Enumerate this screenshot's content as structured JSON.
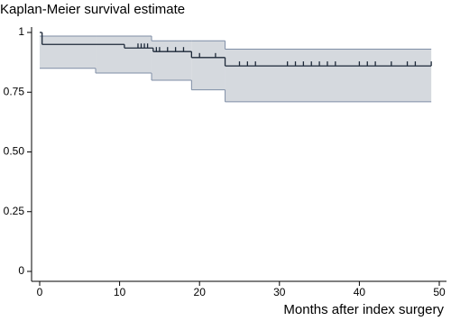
{
  "chart_data": {
    "type": "km",
    "title": "Kaplan-Meier survival estimate",
    "x_label": "Months after index surgery",
    "xlim": [
      0,
      50
    ],
    "xticks": [
      0,
      10,
      20,
      30,
      40,
      50
    ],
    "ylim": [
      0,
      1
    ],
    "yticks": [
      0,
      0.25,
      {
        "value": 0.5,
        "label": "0.50"
      },
      0.75,
      1
    ],
    "survival": {
      "color": "#1c2838",
      "x": [
        0,
        0.3,
        10.6,
        14.2,
        19,
        23.2,
        49
      ],
      "values": [
        1,
        0.95,
        0.935,
        0.92,
        0.895,
        0.86,
        0.86
      ]
    },
    "ci": {
      "color": "#d5d9de",
      "edge_color": "#7f8ea6",
      "x": [
        0,
        7,
        14,
        19,
        23.2,
        49
      ],
      "upper": [
        0.985,
        0.985,
        0.965,
        0.965,
        0.93,
        0.93
      ],
      "lower": [
        0.85,
        0.83,
        0.8,
        0.76,
        0.71,
        0.71
      ]
    },
    "censored": [
      12.3,
      12.7,
      13.1,
      13.5,
      14.6,
      15,
      16,
      17,
      18,
      20,
      22,
      25,
      26,
      27,
      31,
      32,
      33,
      34,
      35,
      36,
      37,
      40,
      41,
      42,
      44,
      46,
      47,
      49
    ]
  }
}
